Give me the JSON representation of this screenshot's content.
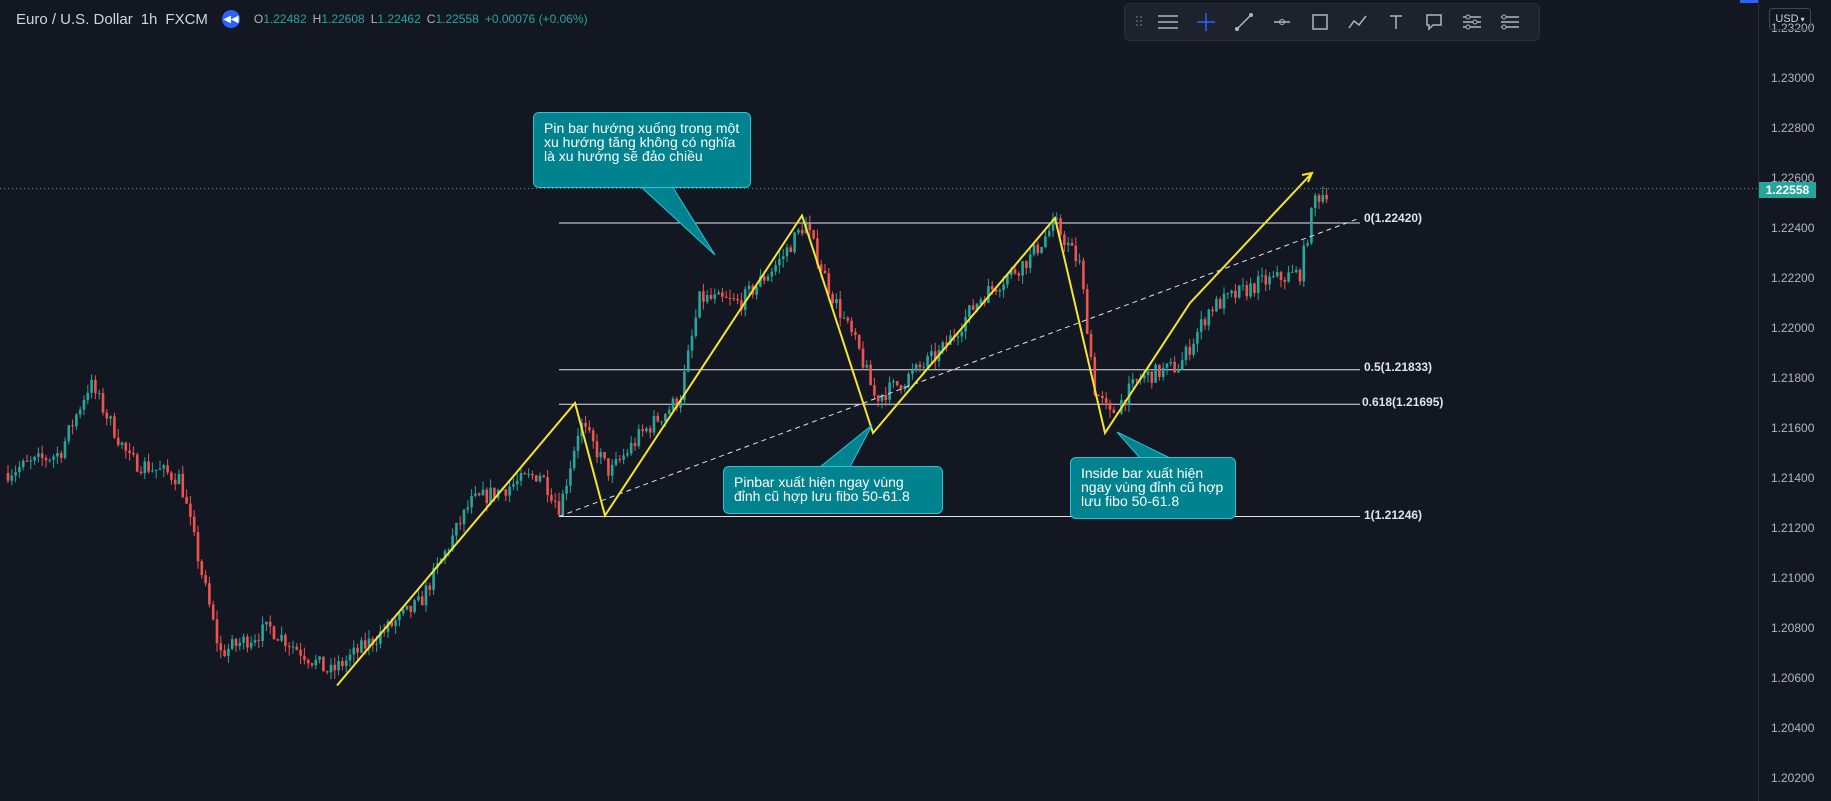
{
  "legend": {
    "symbol": "Euro / U.S. Dollar",
    "interval": "1h",
    "exchange": "FXCM",
    "open_label": "O",
    "open": "1.22482",
    "high_label": "H",
    "high": "1.22608",
    "low_label": "L",
    "low": "1.22462",
    "close_label": "C",
    "close": "1.22558",
    "change": "+0.00076 (+0.06%)"
  },
  "toolbar": {
    "tools": [
      "grip-icon",
      "horizontal-lines-icon",
      "crosshair-icon",
      "trend-line-icon",
      "horizontal-ray-icon",
      "rectangle-icon",
      "path-icon",
      "text-icon",
      "callout-icon",
      "settings-sliders-icon",
      "more-options-icon"
    ]
  },
  "price_axis": {
    "currency": "USD",
    "labels": [
      "1.23200",
      "1.23000",
      "1.22800",
      "1.22600",
      "1.22400",
      "1.22200",
      "1.22000",
      "1.21800",
      "1.21600",
      "1.21400",
      "1.21200",
      "1.21000",
      "1.20800",
      "1.20600",
      "1.20400",
      "1.20200"
    ],
    "current_price": "1.22558"
  },
  "fib_levels": [
    {
      "label": "0(1.22420)",
      "price": 1.2242
    },
    {
      "label": "0.5(1.21833)",
      "price": 1.21833
    },
    {
      "label": "0.618(1.21695)",
      "price": 1.21695
    },
    {
      "label": "1(1.21246)",
      "price": 1.21246
    }
  ],
  "callouts": {
    "pin_bar": "Pin bar hướng xuống trong một xu hướng tăng không có nghĩa là xu hướng sẽ đảo chiều",
    "pinbar_zone": "Pinbar xuất hiện ngay vùng đỉnh cũ hợp lưu fibo 50-61.8",
    "inside_bar": "Inside bar xuất hiện ngay vùng đỉnh cũ hợp lưu fibo 50-61.8"
  },
  "colors": {
    "background": "#131722",
    "up_candle": "#26a69a",
    "down_candle": "#ef5350",
    "drawing_line": "#f5e62b",
    "callout_bg": "#00838f",
    "accent": "#2962ff"
  }
}
